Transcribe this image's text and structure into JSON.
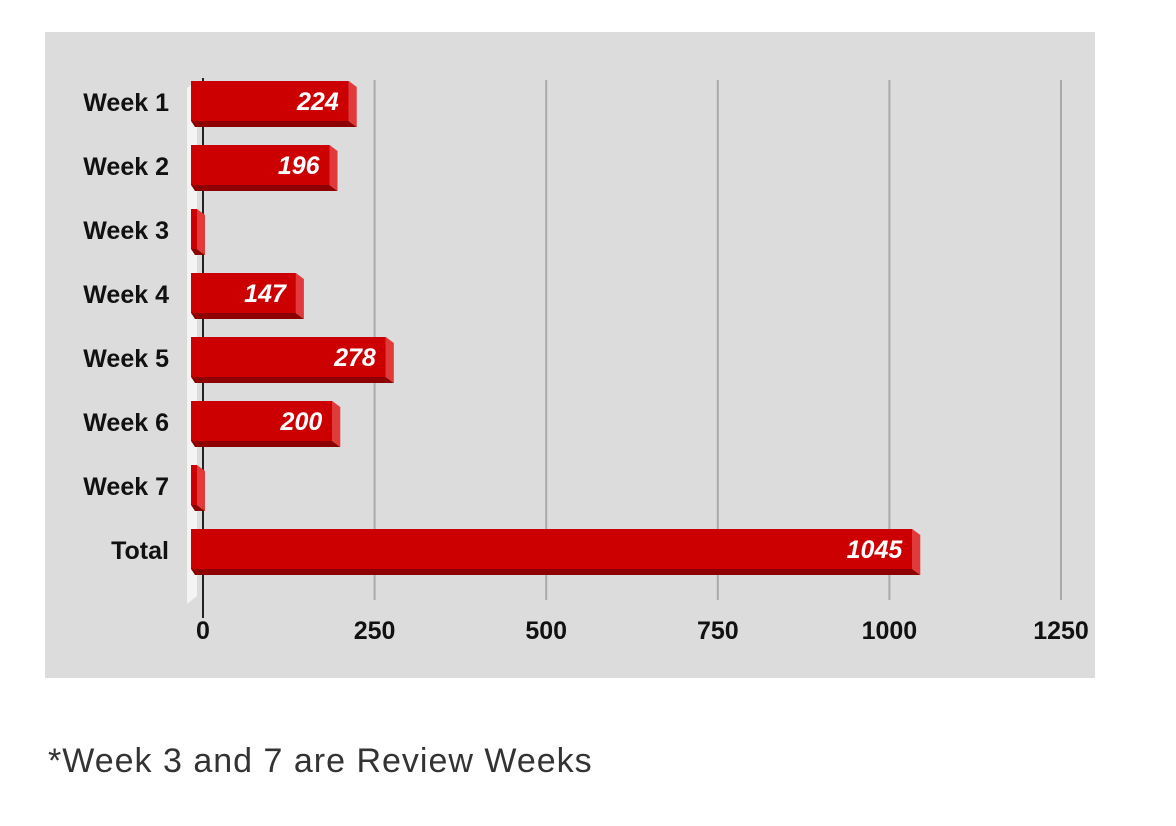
{
  "chart_data": {
    "type": "bar",
    "orientation": "horizontal",
    "categories": [
      "Week 1",
      "Week 2",
      "Week 3",
      "Week 4",
      "Week 5",
      "Week 6",
      "Week 7",
      "Total"
    ],
    "values": [
      224,
      196,
      0,
      147,
      278,
      200,
      0,
      1045
    ],
    "data_labels": [
      "224",
      "196",
      "",
      "147",
      "278",
      "200",
      "",
      "1045"
    ],
    "xlim": [
      0,
      1250
    ],
    "x_ticks": [
      "0",
      "250",
      "500",
      "750",
      "1000",
      "1250"
    ],
    "title": "",
    "xlabel": "",
    "ylabel": "",
    "grid": true,
    "legend": "none",
    "colors": {
      "bar_face": "#cc0000",
      "bar_side": "#e23a3a",
      "bar_bottom": "#8c0000",
      "background": "#dcdcdc",
      "gridline": "#a9a9a9",
      "label_text": "#ffffff",
      "axis_text": "#111111"
    }
  },
  "footnote": "*Week 3 and 7 are Review Weeks"
}
